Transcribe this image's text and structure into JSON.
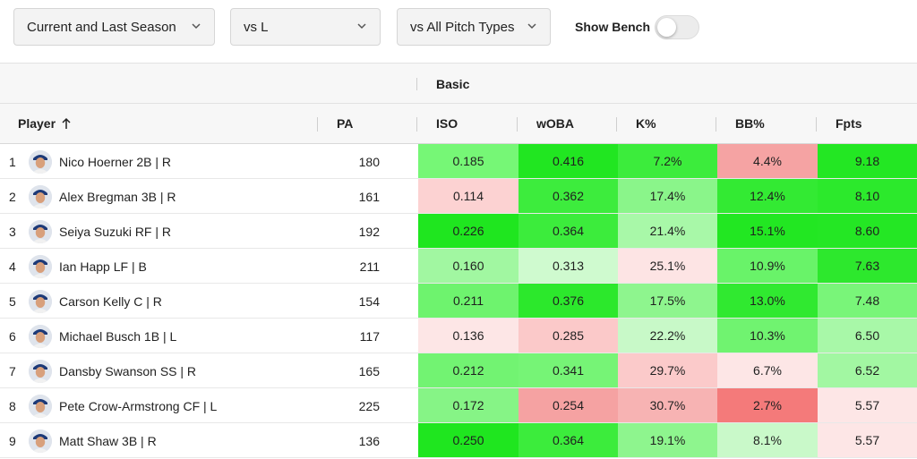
{
  "filters": {
    "season": "Current and Last Season",
    "hand": "vs L",
    "pitch": "vs All Pitch Types",
    "bench_label": "Show Bench",
    "bench_on": false
  },
  "table": {
    "group_label": "Basic",
    "columns": {
      "player": "Player",
      "pa": "PA",
      "iso": "ISO",
      "woba": "wOBA",
      "k": "K%",
      "bb": "BB%",
      "fpts": "Fpts"
    },
    "rows": [
      {
        "rank": "1",
        "name": "Nico Hoerner 2B | R",
        "pa": "180",
        "iso": "0.185",
        "woba": "0.416",
        "k": "7.2%",
        "bb": "4.4%",
        "fpts": "9.18",
        "colors": {
          "iso": "#76f776",
          "woba": "#21e621",
          "k": "#3cec3c",
          "bb": "#f5a3a3",
          "fpts": "#23e723"
        }
      },
      {
        "rank": "2",
        "name": "Alex Bregman 3B | R",
        "pa": "161",
        "iso": "0.114",
        "woba": "0.362",
        "k": "17.4%",
        "bb": "12.4%",
        "fpts": "8.10",
        "colors": {
          "iso": "#fcd2d2",
          "woba": "#3dec3d",
          "k": "#8af58a",
          "bb": "#33ea33",
          "fpts": "#2ce92c"
        }
      },
      {
        "rank": "3",
        "name": "Seiya Suzuki RF | R",
        "pa": "192",
        "iso": "0.226",
        "woba": "0.364",
        "k": "21.4%",
        "bb": "15.1%",
        "fpts": "8.60",
        "colors": {
          "iso": "#1fe61f",
          "woba": "#3cec3c",
          "k": "#a8f8a8",
          "bb": "#22e722",
          "fpts": "#24e724"
        }
      },
      {
        "rank": "4",
        "name": "Ian Happ LF | B",
        "pa": "211",
        "iso": "0.160",
        "woba": "0.313",
        "k": "25.1%",
        "bb": "10.9%",
        "fpts": "7.63",
        "colors": {
          "iso": "#a1f7a1",
          "woba": "#cffacf",
          "k": "#fde4e4",
          "bb": "#69f369",
          "fpts": "#2de82d"
        }
      },
      {
        "rank": "5",
        "name": "Carson Kelly C | R",
        "pa": "154",
        "iso": "0.211",
        "woba": "0.376",
        "k": "17.5%",
        "bb": "13.0%",
        "fpts": "7.48",
        "colors": {
          "iso": "#6ef36e",
          "woba": "#2ce82c",
          "k": "#8ef58e",
          "bb": "#30e930",
          "fpts": "#79f579"
        }
      },
      {
        "rank": "6",
        "name": "Michael Busch 1B | L",
        "pa": "117",
        "iso": "0.136",
        "woba": "0.285",
        "k": "22.2%",
        "bb": "10.3%",
        "fpts": "6.50",
        "colors": {
          "iso": "#fde6e6",
          "woba": "#fbc9c9",
          "k": "#c8f9c8",
          "bb": "#70f370",
          "fpts": "#a8f8a8"
        }
      },
      {
        "rank": "7",
        "name": "Dansby Swanson SS | R",
        "pa": "165",
        "iso": "0.212",
        "woba": "0.341",
        "k": "29.7%",
        "bb": "6.7%",
        "fpts": "6.52",
        "colors": {
          "iso": "#72f372",
          "woba": "#76f476",
          "k": "#fbcaca",
          "bb": "#fde6e6",
          "fpts": "#a2f7a2"
        }
      },
      {
        "rank": "8",
        "name": "Pete Crow-Armstrong CF | L",
        "pa": "225",
        "iso": "0.172",
        "woba": "0.254",
        "k": "30.7%",
        "bb": "2.7%",
        "fpts": "5.57",
        "colors": {
          "iso": "#86f486",
          "woba": "#f5a2a2",
          "k": "#f7b3b3",
          "bb": "#f47a7a",
          "fpts": "#fde6e6"
        }
      },
      {
        "rank": "9",
        "name": "Matt Shaw 3B | R",
        "pa": "136",
        "iso": "0.250",
        "woba": "0.364",
        "k": "19.1%",
        "bb": "8.1%",
        "fpts": "5.57",
        "colors": {
          "iso": "#1fe61f",
          "woba": "#3cec3c",
          "k": "#8ef58e",
          "bb": "#c9f9c9",
          "fpts": "#fde6e6"
        }
      }
    ]
  }
}
